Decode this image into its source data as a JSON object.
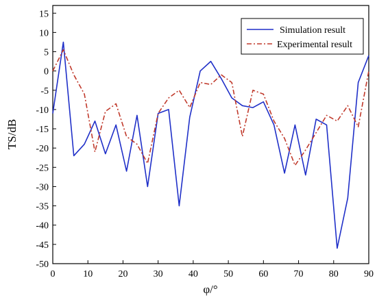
{
  "chart_data": {
    "type": "line",
    "title": "",
    "xlabel": "φ/°",
    "ylabel": "TS/dB",
    "xlim": [
      0,
      90
    ],
    "ylim": [
      -50,
      17
    ],
    "x_ticks": [
      0,
      10,
      20,
      30,
      40,
      50,
      60,
      70,
      80,
      90
    ],
    "y_ticks": [
      15,
      10,
      5,
      0,
      -5,
      -10,
      -15,
      -20,
      -25,
      -30,
      -35,
      -40,
      -45,
      -50
    ],
    "grid": false,
    "legend_position": "top-right",
    "series": [
      {
        "name": "Simulation result",
        "color": "#1f2fc8",
        "style": "solid",
        "x": [
          0,
          3,
          6,
          9,
          12,
          15,
          18,
          21,
          24,
          27,
          30,
          33,
          36,
          39,
          42,
          45,
          48,
          51,
          54,
          57,
          60,
          63,
          66,
          69,
          72,
          75,
          78,
          81,
          84,
          87,
          90
        ],
        "y": [
          -11,
          7.5,
          -22,
          -19,
          -13,
          -21.5,
          -14,
          -26,
          -11.5,
          -30,
          -11,
          -10,
          -35,
          -12,
          0,
          2.5,
          -2,
          -7,
          -9,
          -9.5,
          -8,
          -14,
          -26.5,
          -14,
          -27,
          -12.5,
          -14,
          -46,
          -33,
          -3,
          4
        ]
      },
      {
        "name": "Experimental result",
        "color": "#c0392b",
        "style": "dash-dot",
        "x": [
          0,
          3,
          6,
          9,
          12,
          15,
          18,
          21,
          24,
          27,
          30,
          33,
          36,
          39,
          42,
          45,
          48,
          51,
          54,
          57,
          60,
          63,
          66,
          69,
          72,
          75,
          78,
          81,
          84,
          87,
          90
        ],
        "y": [
          0,
          5.5,
          -1,
          -6,
          -21,
          -10.5,
          -8.5,
          -17,
          -19,
          -24,
          -11,
          -7,
          -5,
          -9.5,
          -3,
          -3.5,
          -1,
          -3,
          -17,
          -5,
          -6,
          -13,
          -17.5,
          -24.5,
          -20.5,
          -16,
          -11.5,
          -13,
          -9,
          -14.5,
          0
        ]
      }
    ]
  }
}
